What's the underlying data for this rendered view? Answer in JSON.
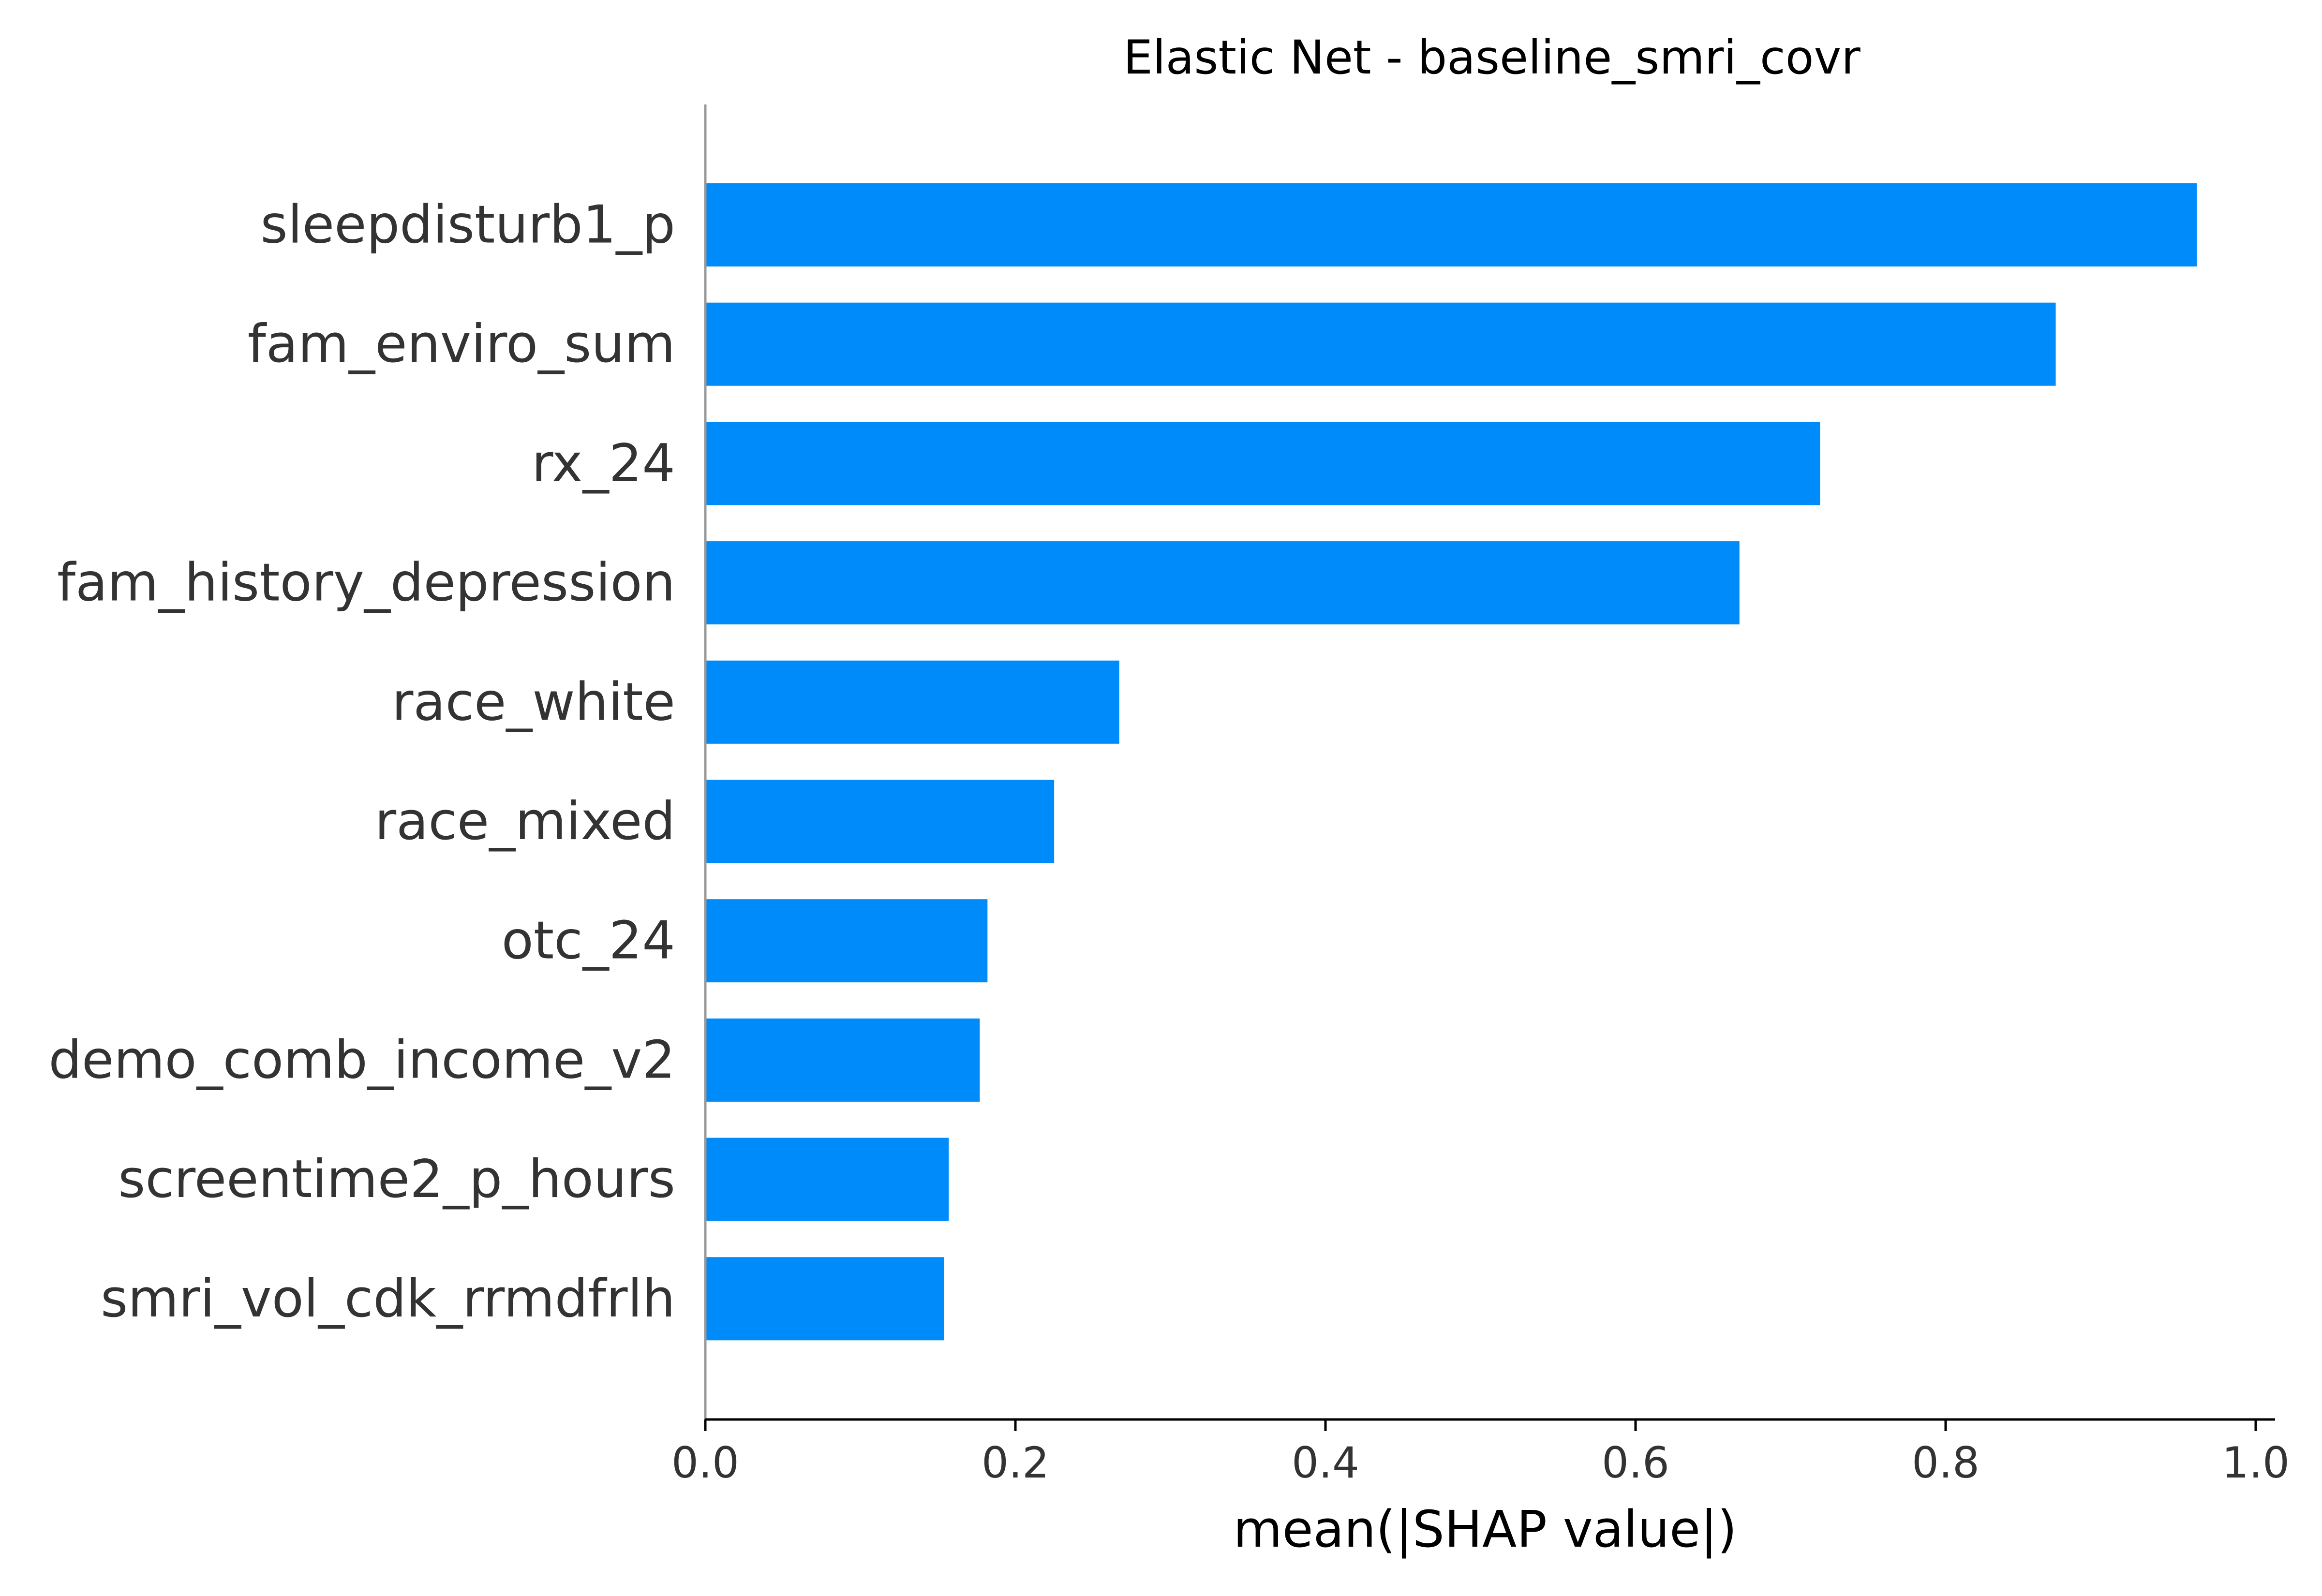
{
  "chart_data": {
    "type": "bar",
    "orientation": "horizontal",
    "title": "Elastic Net - baseline_smri_covr",
    "xlabel": "mean(|SHAP value|)",
    "ylabel": "",
    "xlim": [
      0,
      1.0
    ],
    "xticks": [
      "0.0",
      "0.2",
      "0.4",
      "0.6",
      "0.8",
      "1.0"
    ],
    "bar_color": "#008bfb",
    "grid": false,
    "categories": [
      "sleepdisturb1_p",
      "fam_enviro_sum",
      "rx_24",
      "fam_history_depression",
      "race_white",
      "race_mixed",
      "otc_24",
      "demo_comb_income_v2",
      "screentime2_p_hours",
      "smri_vol_cdk_rrmdfrlh"
    ],
    "values": [
      0.962,
      0.871,
      0.719,
      0.667,
      0.267,
      0.225,
      0.182,
      0.177,
      0.157,
      0.154
    ]
  }
}
